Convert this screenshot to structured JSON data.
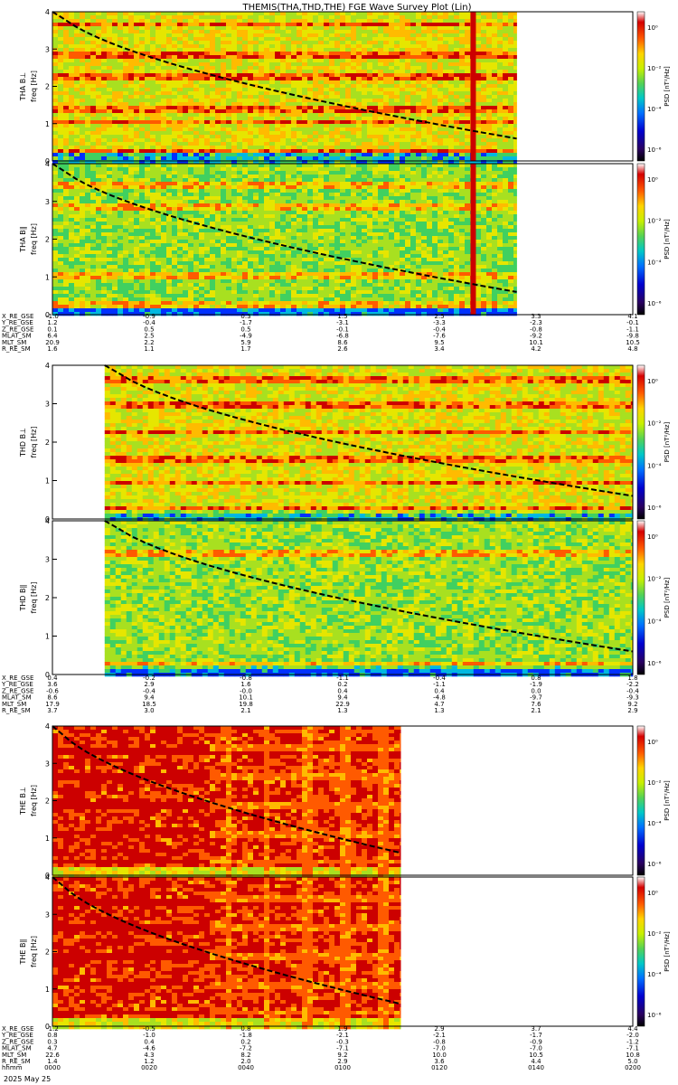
{
  "title": "THEMIS(THA,THD,THE) FGE Wave Survey Plot (Lin)",
  "footer": {
    "time_label": "hhmm",
    "date_label": "2025 May 25"
  },
  "colorbar": {
    "label": "PSD [nT²/Hz]",
    "tick_labels": [
      "10⁰",
      "10⁻²",
      "10⁻⁴",
      "10⁻⁶"
    ],
    "colors": [
      "#ffffff",
      "#d50000",
      "#ff5a00",
      "#ffd400",
      "#c8f000",
      "#55d255",
      "#00c8c8",
      "#0070ff",
      "#0000d0",
      "#2a0060",
      "#000000"
    ]
  },
  "colors": {
    "line": "#000000",
    "axis": "#000000"
  },
  "chart_data": [
    {
      "type": "heatmap",
      "name": "THA B⊥",
      "ylabel": "freq [Hz]",
      "panel_label": "THA B⊥",
      "ylim": [
        0,
        4
      ],
      "ytick_labels": [
        "0",
        "1",
        "2",
        "3",
        "4"
      ],
      "x": [
        0,
        0.25,
        0.5,
        0.75,
        1,
        1.25,
        1.5,
        1.75,
        2
      ],
      "dashed_curve_x": [
        1.6,
        1.8,
        2.0
      ],
      "dashed_curve_y": [
        4,
        2.2,
        1.2
      ],
      "level": 0.55,
      "data_end_hours": 1.6,
      "spike_hours": 1.45,
      "bands_hz": [
        0.3,
        1.1,
        1.45,
        2.3,
        2.9,
        3.7
      ]
    },
    {
      "type": "heatmap",
      "name": "THA B∥",
      "ylabel": "freq [Hz]",
      "panel_label": "THA B∥",
      "ylim": [
        0,
        4
      ],
      "ytick_labels": [
        "0",
        "1",
        "2",
        "3",
        "4"
      ],
      "level": 0.4,
      "data_end_hours": 1.6,
      "spike_hours": 1.45,
      "bands_hz": [
        0.3,
        1.1,
        2.9,
        3.5
      ]
    },
    {
      "type": "heatmap",
      "name": "THD B⊥",
      "ylabel": "freq [Hz]",
      "panel_label": "THD B⊥",
      "ylim": [
        0,
        4
      ],
      "ytick_labels": [
        "0",
        "1",
        "2",
        "3",
        "4"
      ],
      "level": 0.55,
      "data_start_hours": 0.18,
      "bands_hz": [
        0.3,
        1.0,
        1.6,
        2.3,
        3.0,
        3.7
      ]
    },
    {
      "type": "heatmap",
      "name": "THD B∥",
      "ylabel": "freq [Hz]",
      "panel_label": "THD B∥",
      "ylim": [
        0,
        4
      ],
      "ytick_labels": [
        "0",
        "1",
        "2",
        "3",
        "4"
      ],
      "level": 0.42,
      "data_start_hours": 0.18,
      "bands_hz": [
        0.3,
        3.2
      ]
    },
    {
      "type": "heatmap",
      "name": "THE B⊥",
      "ylabel": "freq [Hz]",
      "panel_label": "THE B⊥",
      "ylim": [
        0,
        4
      ],
      "ytick_labels": [
        "0",
        "1",
        "2",
        "3",
        "4"
      ],
      "level": 0.9,
      "data_end_hours": 1.2,
      "grid_start_hours": 0.53,
      "bands_hz": [
        0.4,
        1.2,
        1.9,
        2.7,
        3.4
      ]
    },
    {
      "type": "heatmap",
      "name": "THE B∥",
      "ylabel": "freq [Hz]",
      "panel_label": "THE B∥",
      "ylim": [
        0,
        4
      ],
      "ytick_labels": [
        "0",
        "1",
        "2",
        "3",
        "4"
      ],
      "level": 0.9,
      "data_end_hours": 1.2,
      "grid_start_hours": 0.53,
      "bands_hz": [
        0.4,
        1.2,
        1.9,
        2.7,
        3.4
      ]
    }
  ],
  "ephemeris": [
    {
      "rows": [
        {
          "label": "X_RE_GSE",
          "values": [
            "-1.0",
            "-0.9",
            "0.3",
            "1.5",
            "2.5",
            "3.3",
            "4.1"
          ]
        },
        {
          "label": "Y_RE_GSE",
          "values": [
            "1.2",
            "-0.4",
            "-1.7",
            "-3.1",
            "-3.3",
            "-2.3",
            "-0.1"
          ]
        },
        {
          "label": "Z_RE_GSE",
          "values": [
            "0.1",
            "0.5",
            "0.5",
            "-0.1",
            "-0.4",
            "-0.8",
            "-1.1"
          ]
        },
        {
          "label": "MLAT_SM",
          "values": [
            "6.4",
            "2.5",
            "-4.9",
            "-6.8",
            "-7.6",
            "-9.2",
            "-9.8"
          ]
        },
        {
          "label": "MLT_SM",
          "values": [
            "20.9",
            "2.2",
            "5.9",
            "8.6",
            "9.5",
            "10.1",
            "10.5"
          ]
        },
        {
          "label": "R_RE_SM",
          "values": [
            "1.6",
            "1.1",
            "1.7",
            "2.6",
            "3.4",
            "4.2",
            "4.8"
          ]
        }
      ]
    },
    {
      "rows": [
        {
          "label": "X_RE_GSE",
          "values": [
            "0.4",
            "-0.2",
            "-0.8",
            "-1.1",
            "-0.4",
            "0.8",
            "1.8"
          ]
        },
        {
          "label": "Y_RE_GSE",
          "values": [
            "3.6",
            "2.9",
            "1.6",
            "0.2",
            "-1.1",
            "-1.9",
            "-2.2"
          ]
        },
        {
          "label": "Z_RE_GSE",
          "values": [
            "-0.6",
            "-0.4",
            "-0.0",
            "0.4",
            "0.4",
            "0.0",
            "-0.4"
          ]
        },
        {
          "label": "MLAT_SM",
          "values": [
            "8.6",
            "9.4",
            "10.1",
            "9.4",
            "-4.8",
            "-9.7",
            "-9.3"
          ]
        },
        {
          "label": "MLT_SM",
          "values": [
            "17.9",
            "18.5",
            "19.8",
            "22.9",
            "4.7",
            "7.6",
            "9.2"
          ]
        },
        {
          "label": "R_RE_SM",
          "values": [
            "3.7",
            "3.0",
            "2.1",
            "1.3",
            "1.3",
            "2.1",
            "2.9"
          ]
        }
      ]
    },
    {
      "rows": [
        {
          "label": "X_RE_GSE",
          "values": [
            "-1.2",
            "-0.5",
            "0.8",
            "1.9",
            "2.9",
            "3.7",
            "4.4"
          ]
        },
        {
          "label": "Y_RE_GSE",
          "values": [
            "0.8",
            "-1.0",
            "-1.8",
            "-2.1",
            "-2.1",
            "-1.7",
            "-2.0"
          ]
        },
        {
          "label": "Z_RE_GSE",
          "values": [
            "0.3",
            "0.4",
            "0.2",
            "-0.3",
            "-0.8",
            "-0.9",
            "-1.2"
          ]
        },
        {
          "label": "MLAT_SM",
          "values": [
            "4.7",
            "-4.6",
            "-7.2",
            "-7.1",
            "-7.0",
            "-7.0",
            "-7.1"
          ]
        },
        {
          "label": "MLT_SM",
          "values": [
            "22.6",
            "4.3",
            "8.2",
            "9.2",
            "10.0",
            "10.5",
            "10.8"
          ]
        },
        {
          "label": "R_RE_SM",
          "values": [
            "1.4",
            "1.2",
            "2.0",
            "2.9",
            "3.6",
            "4.4",
            "5.0"
          ]
        },
        {
          "label": "hhmm",
          "values": [
            "0000",
            "0020",
            "0040",
            "0100",
            "0120",
            "0140",
            "0200"
          ]
        }
      ]
    }
  ]
}
